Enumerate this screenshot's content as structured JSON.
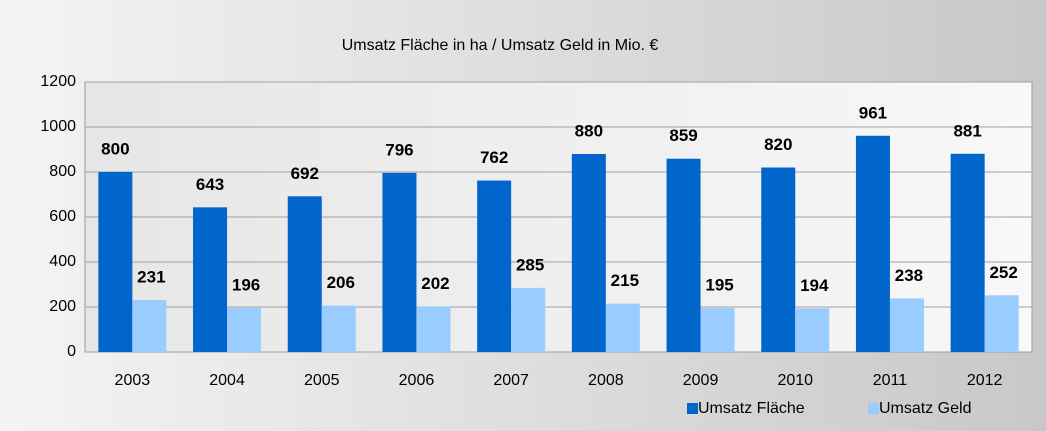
{
  "chart_data": {
    "type": "bar",
    "title": "Umsatz Fläche in ha / Umsatz Geld in Mio. €",
    "categories": [
      "2003",
      "2004",
      "2005",
      "2006",
      "2007",
      "2008",
      "2009",
      "2010",
      "2011",
      "2012"
    ],
    "series": [
      {
        "name": "Umsatz Fläche",
        "color": "#0066cc",
        "values": [
          800,
          643,
          692,
          796,
          762,
          880,
          859,
          820,
          961,
          881
        ]
      },
      {
        "name": "Umsatz Geld",
        "color": "#99ccff",
        "values": [
          231,
          196,
          206,
          202,
          285,
          215,
          195,
          194,
          238,
          252
        ]
      }
    ],
    "ylim": [
      0,
      1200
    ],
    "yticks": [
      0,
      200,
      400,
      600,
      800,
      1000,
      1200
    ],
    "grid": true,
    "legend": "bottom-right"
  }
}
